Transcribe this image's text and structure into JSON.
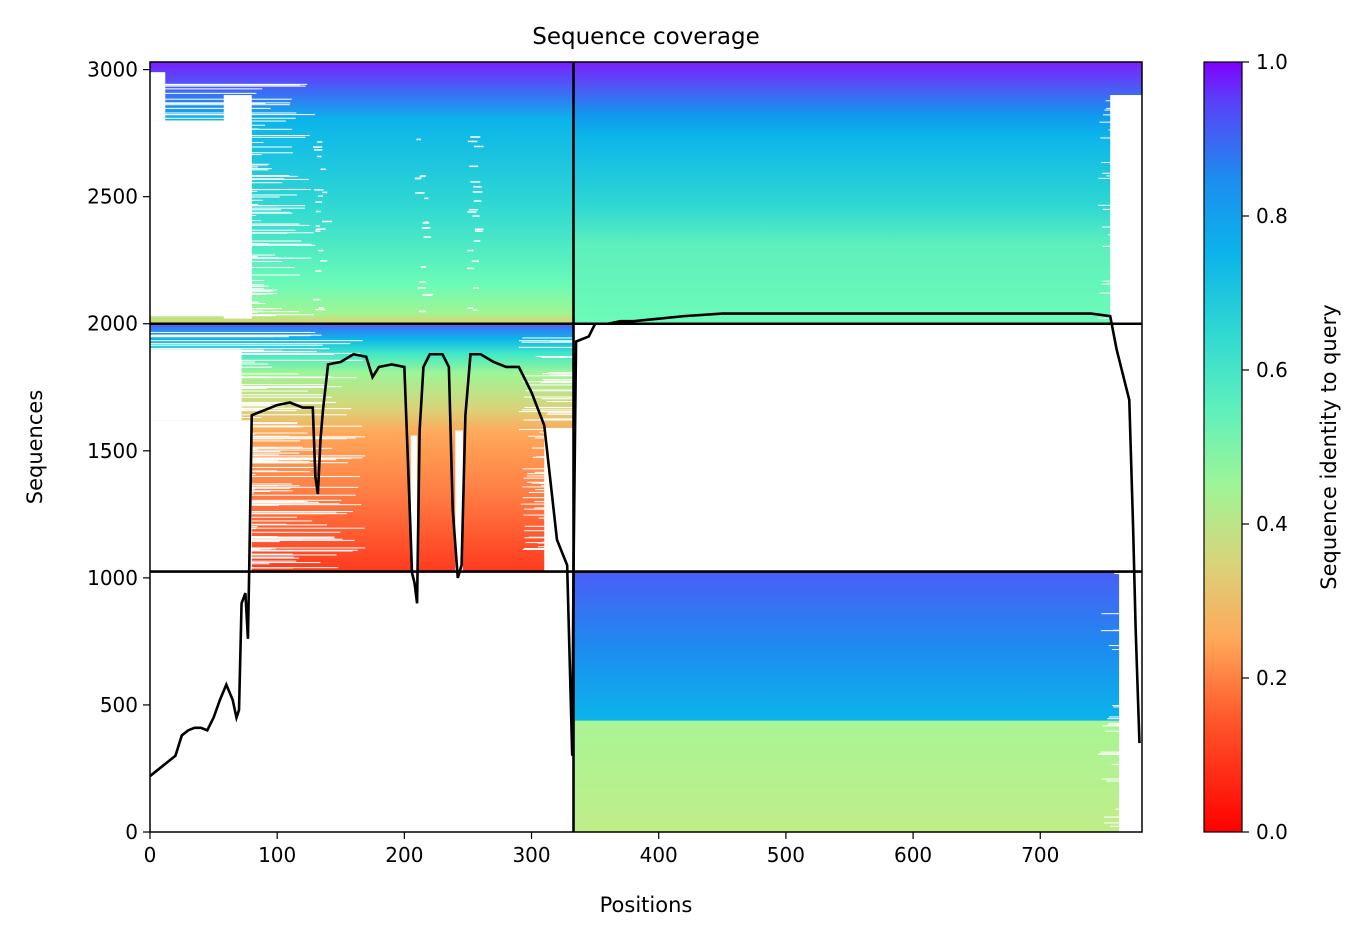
{
  "chart_data": {
    "type": "heatmap",
    "title": "Sequence coverage",
    "xlabel": "Positions",
    "ylabel": "Sequences",
    "xlim": [
      0,
      780
    ],
    "ylim": [
      0,
      3030
    ],
    "xticks": [
      0,
      100,
      200,
      300,
      400,
      500,
      600,
      700
    ],
    "yticks": [
      0,
      500,
      1000,
      1500,
      2000,
      2500,
      3000
    ],
    "colorbar": {
      "label": "Sequence identity to query",
      "range": [
        0,
        1
      ],
      "ticks": [
        "0.0",
        "0.2",
        "0.4",
        "0.6",
        "0.8",
        "1.0"
      ],
      "colormap": "rainbow_r"
    },
    "chain_boundary_x": 333,
    "block_boundaries_y": [
      1025,
      2000
    ],
    "coverage_line": {
      "color": "#000000",
      "x": [
        0,
        10,
        20,
        25,
        30,
        35,
        40,
        45,
        50,
        55,
        60,
        65,
        68,
        70,
        72,
        75,
        77,
        78,
        80,
        90,
        100,
        110,
        120,
        128,
        130,
        132,
        134,
        136,
        140,
        150,
        160,
        170,
        175,
        180,
        190,
        200,
        204,
        206,
        208,
        210,
        212,
        215,
        220,
        230,
        235,
        238,
        242,
        245,
        248,
        252,
        260,
        270,
        280,
        290,
        300,
        310,
        320,
        328,
        332,
        333,
        335,
        345,
        350,
        360,
        370,
        380,
        390,
        400,
        420,
        450,
        500,
        550,
        600,
        650,
        700,
        740,
        755,
        760,
        765,
        770,
        773,
        775,
        777,
        778
      ],
      "y": [
        220,
        260,
        300,
        380,
        400,
        410,
        410,
        400,
        450,
        520,
        580,
        520,
        450,
        480,
        900,
        940,
        760,
        1030,
        1640,
        1660,
        1680,
        1690,
        1670,
        1670,
        1400,
        1330,
        1540,
        1660,
        1840,
        1850,
        1880,
        1870,
        1790,
        1830,
        1840,
        1830,
        1300,
        1020,
        980,
        900,
        1580,
        1830,
        1880,
        1880,
        1830,
        1270,
        1000,
        1050,
        1640,
        1880,
        1880,
        1850,
        1830,
        1830,
        1730,
        1600,
        1150,
        1050,
        300,
        1030,
        1930,
        1950,
        2000,
        2000,
        2010,
        2010,
        2015,
        2020,
        2030,
        2040,
        2040,
        2040,
        2040,
        2040,
        2040,
        2040,
        2030,
        1900,
        1800,
        1700,
        1200,
        800,
        500,
        350
      ]
    }
  }
}
